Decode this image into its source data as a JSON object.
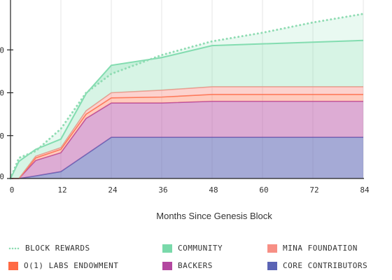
{
  "chart_data": {
    "type": "area",
    "title": "",
    "xlabel": "Months Since Genesis Block",
    "ylabel": "",
    "x_ticks": [
      "0",
      "12",
      "24",
      "36",
      "48",
      "60",
      "72",
      "84"
    ],
    "y_tick_labels": [
      "0",
      "0",
      "0",
      "0"
    ],
    "xlim": [
      0,
      84
    ],
    "ylim": [
      0,
      100
    ],
    "grid": "vertical",
    "stacking": "stacked",
    "x": [
      0,
      2,
      6,
      12,
      18,
      24,
      36,
      48,
      60,
      72,
      84
    ],
    "series": [
      {
        "name": "CORE CONTRIBUTORS",
        "color": "#5b64b5",
        "values": [
          0,
          0,
          1.5,
          4,
          14,
          24,
          24,
          24,
          24,
          24,
          24
        ]
      },
      {
        "name": "BACKERS",
        "color": "#b347a0",
        "values": [
          0,
          0,
          9,
          11,
          21,
          20,
          20,
          21,
          21,
          21,
          21
        ]
      },
      {
        "name": "O(1) LABS ENDOWMENT",
        "color": "#ff6a44",
        "values": [
          0,
          0,
          1.5,
          2,
          2.5,
          3,
          3.5,
          4,
          4,
          4,
          4
        ]
      },
      {
        "name": "MINA FOUNDATION",
        "color": "#f78f85",
        "values": [
          0,
          0,
          1,
          1,
          2,
          3,
          4,
          4.5,
          4.5,
          4.5,
          4.5
        ]
      },
      {
        "name": "COMMUNITY",
        "color": "#79d9aa",
        "values": [
          0,
          10,
          4,
          5,
          10,
          16,
          19,
          24,
          25,
          26,
          27
        ]
      }
    ],
    "block_rewards": {
      "name": "BLOCK REWARDS",
      "color": "#8fdcb3",
      "values": [
        0,
        12,
        16,
        29,
        50,
        61,
        72,
        80,
        85,
        91,
        96
      ]
    },
    "legend_position": "bottom"
  }
}
